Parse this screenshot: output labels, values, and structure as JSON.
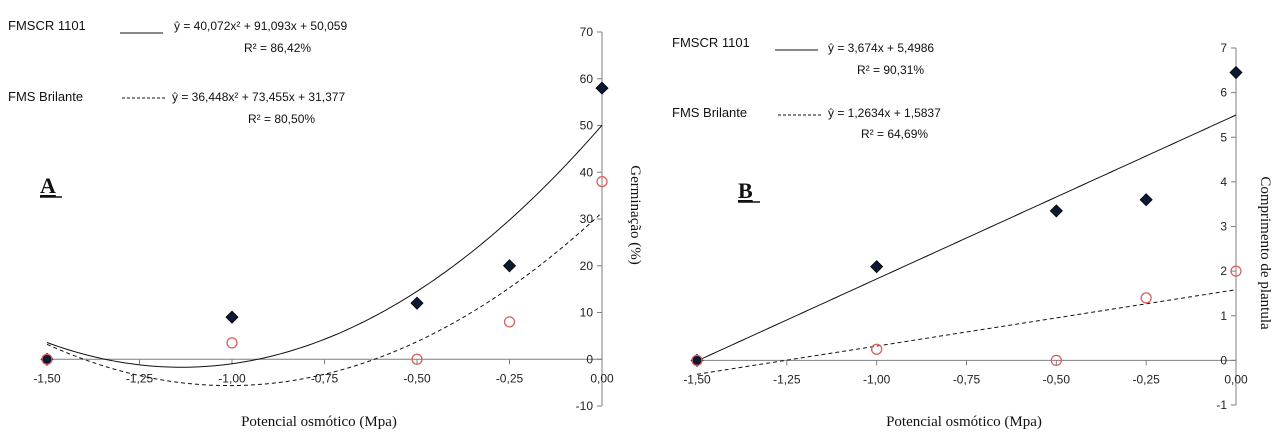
{
  "chart_data": [
    {
      "type": "scatter",
      "panel_label": "A",
      "xlabel": "Potencial osmótico (Mpa)",
      "ylabel": "Germinação (%)",
      "xlim": [
        -1.5,
        0
      ],
      "ylim": [
        -10,
        70
      ],
      "x_ticks": [
        "-1,50",
        "-1,25",
        "-1,00",
        "-0,75",
        "-0,50",
        "-0,25",
        "0,00"
      ],
      "y_ticks": [
        "-10",
        "0",
        "10",
        "20",
        "30",
        "40",
        "50",
        "60",
        "70"
      ],
      "grid": false,
      "series": [
        {
          "name": "FMSCR 1101",
          "marker": "filled-diamond",
          "color": "#0b1a33",
          "line_style": "solid",
          "x": [
            -1.5,
            -1.0,
            -0.5,
            -0.25,
            0.0
          ],
          "y": [
            0,
            9,
            12,
            20,
            58
          ],
          "equation": "ŷ = 40,072x² + 91,093x + 50,059",
          "r2": "R² = 86,42%",
          "fit_coefficients": [
            40.072,
            91.093,
            50.059
          ]
        },
        {
          "name": "FMS Brilante",
          "marker": "open-circle",
          "color": "#d9605f",
          "line_style": "dashed",
          "x": [
            -1.5,
            -1.0,
            -0.5,
            -0.25,
            0.0
          ],
          "y": [
            0,
            3.5,
            0,
            8,
            38
          ],
          "equation": "ŷ = 36,448x² + 73,455x + 31,377",
          "r2": "R² = 80,50%",
          "fit_coefficients": [
            36.448,
            73.455,
            31.377
          ]
        }
      ]
    },
    {
      "type": "scatter",
      "panel_label": "B",
      "xlabel": "Potencial osmótico (Mpa)",
      "ylabel": "Comprimento de plantula",
      "xlim": [
        -1.5,
        0
      ],
      "ylim": [
        -1,
        7
      ],
      "x_ticks": [
        "-1,50",
        "-1,25",
        "-1,00",
        "-0,75",
        "-0,50",
        "-0,25",
        "0,00"
      ],
      "y_ticks": [
        "-1",
        "0",
        "1",
        "2",
        "3",
        "4",
        "5",
        "6",
        "7"
      ],
      "grid": false,
      "series": [
        {
          "name": "FMSCR 1101",
          "marker": "filled-diamond",
          "color": "#0b1a33",
          "line_style": "solid",
          "x": [
            -1.5,
            -1.0,
            -0.5,
            -0.25,
            0.0
          ],
          "y": [
            0,
            2.1,
            3.35,
            3.6,
            6.45
          ],
          "equation": "ŷ = 3,674x + 5,4986",
          "r2": "R² = 90,31%",
          "fit_coefficients": [
            0,
            3.674,
            5.4986
          ]
        },
        {
          "name": "FMS Brilante",
          "marker": "open-circle",
          "color": "#d9605f",
          "line_style": "dashed",
          "x": [
            -1.5,
            -1.0,
            -0.5,
            -0.25,
            0.0
          ],
          "y": [
            0,
            0.25,
            0,
            1.4,
            2.0
          ],
          "equation": "ŷ = 1,2634x + 1,5837",
          "r2": "R² = 64,69%",
          "fit_coefficients": [
            0,
            1.2634,
            1.5837
          ]
        }
      ]
    }
  ]
}
